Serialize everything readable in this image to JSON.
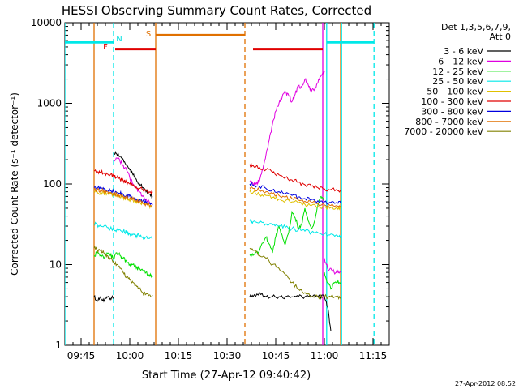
{
  "chart_data": {
    "type": "line",
    "title": "HESSI Observing Summary Count Rates, Corrected",
    "xlabel": "Start Time (27-Apr-12 09:40:42)",
    "ylabel": "Corrected Count Rate (s⁻¹ detector⁻¹)",
    "y_scale": "log",
    "ylim": [
      1,
      10000
    ],
    "xlim_minutes_since_0940": [
      0,
      100
    ],
    "x_ticks": [
      {
        "label": "09:45",
        "t": 5
      },
      {
        "label": "10:00",
        "t": 20
      },
      {
        "label": "10:15",
        "t": 35
      },
      {
        "label": "10:30",
        "t": 50
      },
      {
        "label": "10:45",
        "t": 65
      },
      {
        "label": "11:00",
        "t": 80
      },
      {
        "label": "11:15",
        "t": 95
      }
    ],
    "y_ticks": [
      {
        "label": "1",
        "v": 1
      },
      {
        "label": "10",
        "v": 10
      },
      {
        "label": "100",
        "v": 100
      },
      {
        "label": "1000",
        "v": 1000
      },
      {
        "label": "10000",
        "v": 10000
      }
    ],
    "legend": {
      "header": [
        "Det 1,3,5,6,7,9,",
        "Att 0"
      ],
      "position": "top-right outside",
      "entries": [
        {
          "name": "3 - 6 keV",
          "color": "#000000"
        },
        {
          "name": "6 - 12 keV",
          "color": "#e000e0"
        },
        {
          "name": "12 - 25 keV",
          "color": "#00e000"
        },
        {
          "name": "25 - 50 keV",
          "color": "#00e8e8"
        },
        {
          "name": "50 - 100 keV",
          "color": "#e0c000"
        },
        {
          "name": "100 - 300 keV",
          "color": "#e00000"
        },
        {
          "name": "300 - 800 keV",
          "color": "#0000e0"
        },
        {
          "name": "800 - 7000 keV",
          "color": "#e07000"
        },
        {
          "name": "7000 - 20000 keV",
          "color": "#808000"
        }
      ]
    },
    "flags": [
      {
        "label": "N",
        "color": "#00e0e0"
      },
      {
        "label": "F",
        "color": "#e00000"
      },
      {
        "label": "S",
        "color": "#e07000"
      }
    ],
    "series": [
      {
        "name": "3 - 6 keV",
        "color": "#000000",
        "segments": [
          {
            "x": [
              9,
              10,
              11,
              12,
              13,
              14,
              15
            ],
            "y": [
              4,
              3.5,
              4,
              3.5,
              4,
              3.8,
              4
            ]
          },
          {
            "x": [
              15,
              16,
              17,
              18,
              19,
              20,
              21,
              22,
              23,
              24,
              25,
              26,
              27
            ],
            "y": [
              240,
              235,
              220,
              200,
              170,
              150,
              130,
              115,
              100,
              90,
              80,
              75,
              70
            ]
          },
          {
            "x": [
              57,
              58,
              60,
              62,
              64,
              66,
              68,
              70,
              72,
              74,
              76,
              78,
              80,
              81,
              82
            ],
            "y": [
              4,
              4,
              4.5,
              4,
              4,
              4,
              4,
              4,
              4,
              4,
              4,
              4,
              4,
              3,
              1.5
            ]
          }
        ]
      },
      {
        "name": "6 - 12 keV",
        "color": "#e000e0",
        "segments": [
          {
            "x": [
              15,
              16,
              17,
              18,
              19,
              20,
              21,
              22,
              23,
              24,
              25,
              26,
              27
            ],
            "y": [
              200,
              210,
              190,
              170,
              150,
              120,
              100,
              90,
              80,
              70,
              65,
              60,
              55
            ]
          },
          {
            "x": [
              57,
              58,
              59,
              60,
              61,
              62,
              63,
              64,
              65,
              66,
              67,
              68,
              69,
              70,
              71,
              72,
              73,
              74,
              75,
              76,
              77,
              78,
              79,
              80
            ],
            "y": [
              110,
              100,
              100,
              110,
              150,
              230,
              350,
              550,
              800,
              1000,
              1200,
              1400,
              1250,
              1050,
              1300,
              1650,
              1600,
              2000,
              1700,
              1400,
              1500,
              1800,
              2200,
              2500
            ]
          },
          {
            "x": [
              80,
              81,
              82,
              83,
              84,
              85
            ],
            "y": [
              12,
              9,
              9,
              8,
              8,
              8
            ]
          }
        ]
      },
      {
        "name": "12 - 25 keV",
        "color": "#00e000",
        "segments": [
          {
            "x": [
              9,
              10,
              11,
              12,
              13,
              14,
              15,
              16,
              17,
              18,
              19,
              20,
              21,
              22,
              23,
              24,
              25,
              26,
              27
            ],
            "y": [
              13,
              14,
              13,
              12,
              14,
              13,
              12,
              14,
              13,
              12,
              11,
              10,
              10,
              9,
              9,
              8.5,
              8,
              7.5,
              7
            ]
          },
          {
            "x": [
              57,
              58,
              60,
              62,
              63,
              64,
              65,
              66,
              67,
              68,
              69,
              70,
              71,
              72,
              73,
              74,
              75,
              76,
              77,
              78,
              79,
              80
            ],
            "y": [
              13,
              13,
              15,
              22,
              18,
              14,
              22,
              30,
              23,
              18,
              25,
              45,
              38,
              28,
              32,
              50,
              35,
              28,
              35,
              55,
              70,
              60
            ]
          },
          {
            "x": [
              80,
              81,
              82,
              83,
              84,
              85
            ],
            "y": [
              8,
              6,
              5,
              6,
              6,
              6
            ]
          }
        ]
      },
      {
        "name": "25 - 50 keV",
        "color": "#00e8e8",
        "segments": [
          {
            "x": [
              9,
              10,
              11,
              12,
              13,
              14,
              15,
              16,
              17,
              18,
              19,
              20,
              21,
              22,
              23,
              24,
              25,
              26,
              27
            ],
            "y": [
              32,
              31,
              30,
              30,
              29,
              28,
              28,
              27,
              27,
              26,
              25,
              24,
              24,
              23,
              23,
              22,
              22,
              21,
              21
            ]
          },
          {
            "x": [
              57,
              58,
              60,
              62,
              64,
              66,
              68,
              70,
              72,
              74,
              76,
              78,
              80,
              82,
              84,
              85
            ],
            "y": [
              35,
              34,
              33,
              32,
              31,
              30,
              29,
              28,
              27,
              26,
              25,
              25,
              24,
              24,
              23,
              23
            ]
          }
        ]
      },
      {
        "name": "50 - 100 keV",
        "color": "#e0c000",
        "segments": [
          {
            "x": [
              9,
              10,
              11,
              12,
              13,
              14,
              15,
              16,
              17,
              18,
              19,
              20,
              21,
              22,
              23,
              24,
              25,
              26,
              27
            ],
            "y": [
              80,
              79,
              78,
              77,
              76,
              75,
              74,
              72,
              70,
              68,
              66,
              65,
              63,
              61,
              59,
              57,
              56,
              54,
              52
            ]
          },
          {
            "x": [
              57,
              58,
              60,
              62,
              64,
              66,
              68,
              70,
              72,
              74,
              76,
              78,
              80,
              82,
              84,
              85
            ],
            "y": [
              80,
              78,
              75,
              72,
              68,
              65,
              62,
              60,
              58,
              56,
              54,
              53,
              52,
              51,
              50,
              50
            ]
          }
        ]
      },
      {
        "name": "100 - 300 keV",
        "color": "#e00000",
        "segments": [
          {
            "x": [
              9,
              10,
              11,
              12,
              13,
              14,
              15,
              16,
              17,
              18,
              19,
              20,
              21,
              22,
              23,
              24,
              25,
              26,
              27
            ],
            "y": [
              145,
              142,
              140,
              137,
              133,
              130,
              125,
              120,
              115,
              110,
              105,
              100,
              96,
              92,
              88,
              85,
              82,
              80,
              78
            ]
          },
          {
            "x": [
              57,
              58,
              60,
              62,
              64,
              66,
              68,
              70,
              72,
              74,
              76,
              78,
              80,
              82,
              84,
              85
            ],
            "y": [
              175,
              170,
              160,
              150,
              140,
              130,
              120,
              112,
              105,
              98,
              94,
              90,
              87,
              85,
              84,
              83
            ]
          }
        ]
      },
      {
        "name": "300 - 800 keV",
        "color": "#0000e0",
        "segments": [
          {
            "x": [
              9,
              10,
              11,
              12,
              13,
              14,
              15,
              16,
              17,
              18,
              19,
              20,
              21,
              22,
              23,
              24,
              25,
              26,
              27
            ],
            "y": [
              90,
              89,
              88,
              86,
              84,
              82,
              80,
              78,
              76,
              74,
              72,
              70,
              67,
              65,
              63,
              61,
              59,
              57,
              55
            ]
          },
          {
            "x": [
              57,
              58,
              60,
              62,
              64,
              66,
              68,
              70,
              72,
              74,
              76,
              78,
              80,
              82,
              84,
              85
            ],
            "y": [
              100,
              97,
              93,
              88,
              84,
              80,
              76,
              72,
              69,
              66,
              64,
              62,
              60,
              59,
              58,
              58
            ]
          }
        ]
      },
      {
        "name": "800 - 7000 keV",
        "color": "#e07000",
        "segments": [
          {
            "x": [
              9,
              10,
              11,
              12,
              13,
              14,
              15,
              16,
              17,
              18,
              19,
              20,
              21,
              22,
              23,
              24,
              25,
              26,
              27
            ],
            "y": [
              85,
              84,
              83,
              82,
              80,
              78,
              76,
              74,
              72,
              70,
              68,
              66,
              64,
              62,
              60,
              58,
              56,
              55,
              54
            ]
          },
          {
            "x": [
              57,
              58,
              60,
              62,
              64,
              66,
              68,
              70,
              72,
              74,
              76,
              78,
              80,
              82,
              84,
              85
            ],
            "y": [
              90,
              88,
              84,
              80,
              76,
              72,
              69,
              66,
              63,
              61,
              59,
              57,
              55,
              54,
              53,
              52
            ]
          }
        ]
      },
      {
        "name": "7000 - 20000 keV",
        "color": "#808000",
        "segments": [
          {
            "x": [
              9,
              10,
              11,
              12,
              13,
              14,
              15,
              16,
              17,
              18,
              19,
              20,
              21,
              22,
              23,
              24,
              25,
              26,
              27
            ],
            "y": [
              16,
              15,
              15,
              14,
              13,
              12,
              11,
              10,
              9,
              8,
              7,
              6.5,
              6,
              5.5,
              5,
              4.5,
              4.3,
              4.2,
              4.2
            ]
          },
          {
            "x": [
              57,
              58,
              60,
              62,
              64,
              66,
              68,
              70,
              72,
              74,
              76,
              78,
              80,
              82,
              84,
              85
            ],
            "y": [
              16,
              15,
              13,
              12,
              10,
              9,
              7.5,
              6,
              5,
              4.5,
              4,
              4,
              4,
              4,
              4,
              4
            ]
          }
        ]
      }
    ],
    "boundaries": [
      {
        "t": 0,
        "color": "#00e8e8",
        "style": "solid"
      },
      {
        "t": 9,
        "color": "#e07000",
        "style": "solid"
      },
      {
        "t": 15,
        "color": "#00e8e8",
        "style": "dashed"
      },
      {
        "t": 28,
        "color": "#e07000",
        "style": "solid"
      },
      {
        "t": 55.5,
        "color": "#e07000",
        "style": "dashed"
      },
      {
        "t": 79.5,
        "color": "#e000e0",
        "style": "solid"
      },
      {
        "t": 80.7,
        "color": "#00e8e8",
        "style": "solid"
      },
      {
        "t": 85,
        "color": "#e07000",
        "style": "solid"
      },
      {
        "t": 85.3,
        "color": "#00e8e8",
        "style": "solid"
      },
      {
        "t": 95.3,
        "color": "#00e8e8",
        "style": "dashed"
      }
    ],
    "flag_bars": [
      {
        "label": "N",
        "color": "#00e8e8",
        "y": 5700,
        "ranges": [
          [
            0,
            15
          ],
          [
            80.7,
            95.3
          ]
        ]
      },
      {
        "label": "F",
        "color": "#e00000",
        "y": 4700,
        "ranges": [
          [
            15.5,
            28
          ],
          [
            58,
            79.5
          ]
        ]
      },
      {
        "label": "S",
        "color": "#e07000",
        "y": 7000,
        "ranges": [
          [
            28,
            55.5
          ]
        ]
      }
    ]
  },
  "footer": {
    "timestamp": "27-Apr-2012 08:52"
  }
}
